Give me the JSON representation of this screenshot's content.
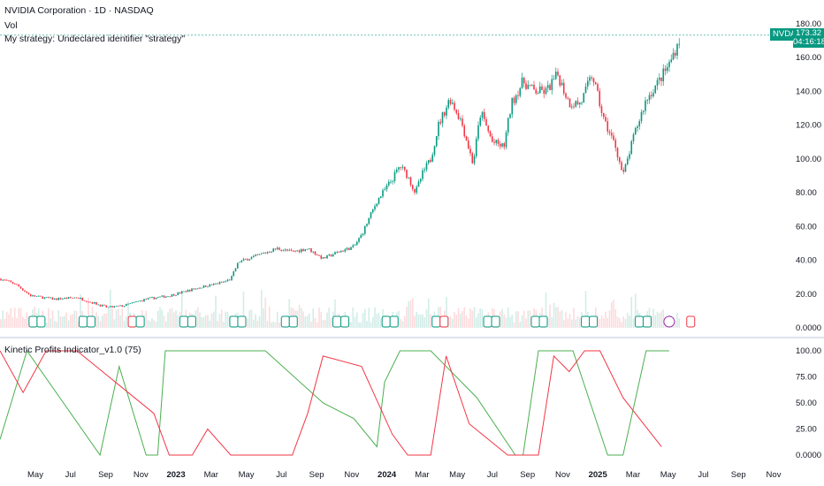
{
  "legend": {
    "title": "NVIDIA Corporation · 1D · NASDAQ",
    "vol": "Vol",
    "strategy": "My strategy: Undeclared identifier \"strategy\"",
    "indicator": "Kinetic Profits Indicator_v1.0 (75)"
  },
  "price_tag": {
    "symbol": "NVDA",
    "price": "173.32",
    "countdown": "04:16:18"
  },
  "colors": {
    "up": "#089981",
    "down": "#f23645",
    "green_line": "#4caf50",
    "red_line": "#f23645",
    "price_line": "#089981"
  },
  "price_axis": [
    "180.00",
    "160.00",
    "140.00",
    "120.00",
    "100.00",
    "80.00",
    "60.00",
    "40.00",
    "20.00",
    "0.0000"
  ],
  "indicator_axis": [
    "100.00",
    "75.00",
    "50.00",
    "25.00",
    "0.0000"
  ],
  "time_axis": [
    "May",
    "Jul",
    "Sep",
    "Nov",
    "2023",
    "Mar",
    "May",
    "Jul",
    "Sep",
    "Nov",
    "2024",
    "Mar",
    "May",
    "Jul",
    "Sep",
    "Nov",
    "2025",
    "Mar",
    "May",
    "Jul",
    "Sep",
    "Nov"
  ],
  "events": [
    {
      "type": "ED",
      "t": 0.047
    },
    {
      "type": "ED",
      "t": 0.112
    },
    {
      "type": "ED-red",
      "t": 0.176
    },
    {
      "type": "ED",
      "t": 0.243
    },
    {
      "type": "ED",
      "t": 0.308
    },
    {
      "type": "ED",
      "t": 0.375
    },
    {
      "type": "ED",
      "t": 0.442
    },
    {
      "type": "ED",
      "t": 0.506
    },
    {
      "type": "ES",
      "t": 0.571
    },
    {
      "type": "ED",
      "t": 0.638
    },
    {
      "type": "ED",
      "t": 0.7
    },
    {
      "type": "ED",
      "t": 0.765
    },
    {
      "type": "ED",
      "t": 0.835
    },
    {
      "type": "split",
      "t": 0.87
    },
    {
      "type": "E",
      "t": 0.902
    }
  ],
  "chart_data": {
    "type": "line",
    "title": "NVIDIA Corporation · 1D · NASDAQ",
    "price_range": [
      0,
      180
    ],
    "last_price": 173.32,
    "price_path": [
      {
        "t": 0.0,
        "v": 29
      },
      {
        "t": 0.02,
        "v": 26
      },
      {
        "t": 0.04,
        "v": 19
      },
      {
        "t": 0.07,
        "v": 17
      },
      {
        "t": 0.1,
        "v": 18
      },
      {
        "t": 0.12,
        "v": 15
      },
      {
        "t": 0.14,
        "v": 12
      },
      {
        "t": 0.16,
        "v": 13
      },
      {
        "t": 0.19,
        "v": 17
      },
      {
        "t": 0.22,
        "v": 19
      },
      {
        "t": 0.26,
        "v": 24
      },
      {
        "t": 0.29,
        "v": 27
      },
      {
        "t": 0.3,
        "v": 29
      },
      {
        "t": 0.31,
        "v": 39
      },
      {
        "t": 0.33,
        "v": 42
      },
      {
        "t": 0.36,
        "v": 47
      },
      {
        "t": 0.38,
        "v": 45
      },
      {
        "t": 0.4,
        "v": 47
      },
      {
        "t": 0.42,
        "v": 41
      },
      {
        "t": 0.44,
        "v": 45
      },
      {
        "t": 0.46,
        "v": 48
      },
      {
        "t": 0.47,
        "v": 55
      },
      {
        "t": 0.48,
        "v": 65
      },
      {
        "t": 0.49,
        "v": 75
      },
      {
        "t": 0.51,
        "v": 88
      },
      {
        "t": 0.52,
        "v": 96
      },
      {
        "t": 0.53,
        "v": 90
      },
      {
        "t": 0.54,
        "v": 80
      },
      {
        "t": 0.55,
        "v": 92
      },
      {
        "t": 0.56,
        "v": 100
      },
      {
        "t": 0.57,
        "v": 120
      },
      {
        "t": 0.585,
        "v": 136
      },
      {
        "t": 0.6,
        "v": 122
      },
      {
        "t": 0.615,
        "v": 97
      },
      {
        "t": 0.625,
        "v": 128
      },
      {
        "t": 0.64,
        "v": 110
      },
      {
        "t": 0.655,
        "v": 107
      },
      {
        "t": 0.665,
        "v": 133
      },
      {
        "t": 0.68,
        "v": 146
      },
      {
        "t": 0.695,
        "v": 140
      },
      {
        "t": 0.71,
        "v": 140
      },
      {
        "t": 0.725,
        "v": 150
      },
      {
        "t": 0.74,
        "v": 133
      },
      {
        "t": 0.755,
        "v": 133
      },
      {
        "t": 0.77,
        "v": 150
      },
      {
        "t": 0.785,
        "v": 123
      },
      {
        "t": 0.8,
        "v": 108
      },
      {
        "t": 0.81,
        "v": 90
      },
      {
        "t": 0.825,
        "v": 115
      },
      {
        "t": 0.84,
        "v": 135
      },
      {
        "t": 0.855,
        "v": 145
      },
      {
        "t": 0.87,
        "v": 156
      },
      {
        "t": 0.885,
        "v": 173
      }
    ],
    "indicator": {
      "range": [
        0,
        100
      ],
      "series": [
        {
          "color": "green",
          "points": [
            {
              "t": 0.0,
              "v": 15
            },
            {
              "t": 0.035,
              "v": 100
            },
            {
              "t": 0.13,
              "v": 0
            },
            {
              "t": 0.155,
              "v": 85
            },
            {
              "t": 0.19,
              "v": 0
            },
            {
              "t": 0.205,
              "v": 0
            },
            {
              "t": 0.215,
              "v": 100
            },
            {
              "t": 0.3,
              "v": 100
            },
            {
              "t": 0.345,
              "v": 100
            },
            {
              "t": 0.42,
              "v": 50
            },
            {
              "t": 0.46,
              "v": 35
            },
            {
              "t": 0.49,
              "v": 8
            },
            {
              "t": 0.5,
              "v": 70
            },
            {
              "t": 0.52,
              "v": 100
            },
            {
              "t": 0.56,
              "v": 100
            },
            {
              "t": 0.62,
              "v": 55
            },
            {
              "t": 0.67,
              "v": 0
            },
            {
              "t": 0.68,
              "v": 0
            },
            {
              "t": 0.7,
              "v": 100
            },
            {
              "t": 0.745,
              "v": 100
            },
            {
              "t": 0.79,
              "v": 0
            },
            {
              "t": 0.81,
              "v": 0
            },
            {
              "t": 0.84,
              "v": 100
            },
            {
              "t": 0.87,
              "v": 100
            }
          ]
        },
        {
          "color": "red",
          "points": [
            {
              "t": 0.0,
              "v": 100
            },
            {
              "t": 0.03,
              "v": 60
            },
            {
              "t": 0.06,
              "v": 100
            },
            {
              "t": 0.1,
              "v": 100
            },
            {
              "t": 0.2,
              "v": 40
            },
            {
              "t": 0.22,
              "v": 0
            },
            {
              "t": 0.25,
              "v": 0
            },
            {
              "t": 0.27,
              "v": 25
            },
            {
              "t": 0.3,
              "v": 0
            },
            {
              "t": 0.38,
              "v": 0
            },
            {
              "t": 0.4,
              "v": 40
            },
            {
              "t": 0.42,
              "v": 95
            },
            {
              "t": 0.47,
              "v": 85
            },
            {
              "t": 0.51,
              "v": 20
            },
            {
              "t": 0.53,
              "v": 0
            },
            {
              "t": 0.56,
              "v": 0
            },
            {
              "t": 0.58,
              "v": 95
            },
            {
              "t": 0.61,
              "v": 30
            },
            {
              "t": 0.66,
              "v": 0
            },
            {
              "t": 0.7,
              "v": 0
            },
            {
              "t": 0.72,
              "v": 95
            },
            {
              "t": 0.74,
              "v": 80
            },
            {
              "t": 0.76,
              "v": 100
            },
            {
              "t": 0.78,
              "v": 100
            },
            {
              "t": 0.81,
              "v": 55
            },
            {
              "t": 0.86,
              "v": 8
            }
          ]
        }
      ]
    }
  }
}
